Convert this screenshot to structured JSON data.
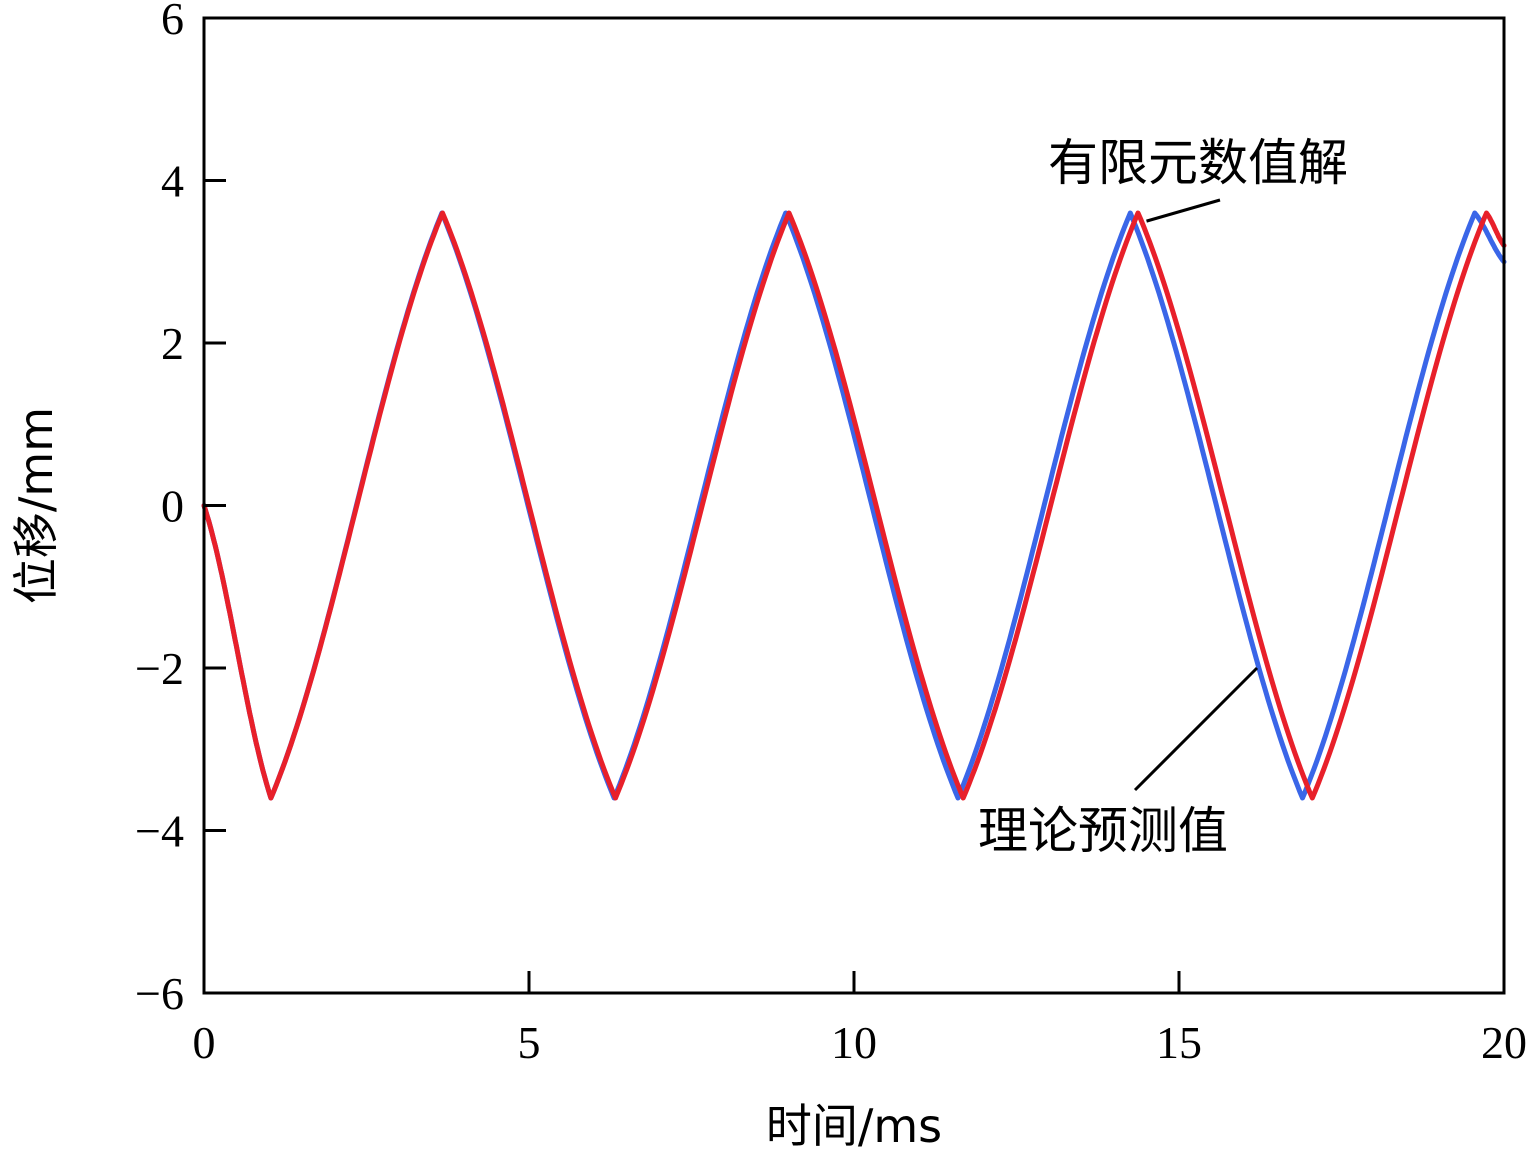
{
  "chart_data": {
    "type": "line",
    "title": "",
    "xlabel": "时间/ms",
    "ylabel": "位移/mm",
    "xlim": [
      0,
      20
    ],
    "ylim": [
      -6,
      6
    ],
    "xticks": [
      0,
      5,
      10,
      15,
      20
    ],
    "yticks": [
      -6,
      -4,
      -2,
      0,
      2,
      4,
      6
    ],
    "xtick_labels": [
      "0",
      "5",
      "10",
      "15",
      "20"
    ],
    "ytick_labels": [
      "−6",
      "−4",
      "−2",
      "0",
      "2",
      "4",
      "6"
    ],
    "grid": false,
    "legend": "none",
    "series": [
      {
        "name": "有限元数值解",
        "color": "#e8202a",
        "x": [
          0,
          1.03,
          3.67,
          6.33,
          9.0,
          11.68,
          14.37,
          17.05,
          19.73,
          20.0
        ],
        "y": [
          0,
          -3.6,
          3.6,
          -3.6,
          3.6,
          -3.6,
          3.6,
          -3.6,
          3.6,
          3.2
        ]
      },
      {
        "name": "理论预测值",
        "color": "#3a66e8",
        "x": [
          0,
          1.03,
          3.66,
          6.31,
          8.95,
          11.6,
          14.25,
          16.9,
          19.55,
          20.0
        ],
        "y": [
          0,
          -3.6,
          3.6,
          -3.6,
          3.6,
          -3.6,
          3.6,
          -3.6,
          3.6,
          3.0
        ]
      }
    ],
    "annotations": [
      {
        "text": "有限元数值解",
        "target_series": 0,
        "point": [
          14.5,
          3.5
        ]
      },
      {
        "text": "理论预测值",
        "target_series": 1,
        "point": [
          16.2,
          -2.0
        ]
      }
    ]
  }
}
